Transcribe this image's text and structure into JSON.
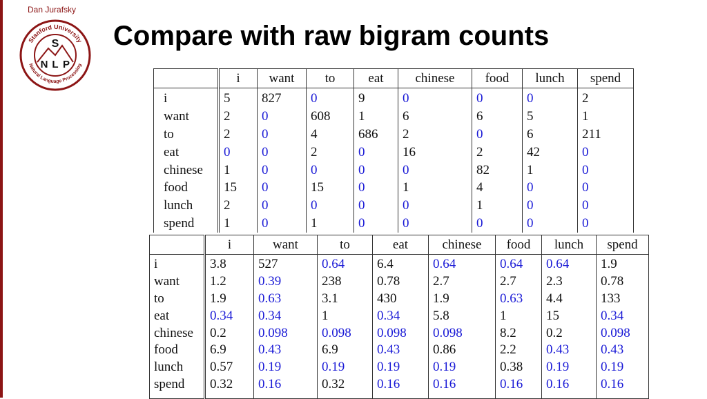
{
  "header": {
    "author": "Dan Jurafsky",
    "title": "Compare with raw bigram counts"
  },
  "logo": {
    "ring_text_top": "Stanford University",
    "ring_text_bottom": "Natural Language Processing",
    "letters": [
      "S",
      "N",
      "L",
      "P"
    ],
    "color": "#8c1515"
  },
  "colors": {
    "zero_value": "#1a1ad6",
    "accent": "#8c1515"
  },
  "counts_table": {
    "columns": [
      "i",
      "want",
      "to",
      "eat",
      "chinese",
      "food",
      "lunch",
      "spend"
    ],
    "rows": [
      {
        "label": "i",
        "values": [
          "5",
          "827",
          "0",
          "9",
          "0",
          "0",
          "0",
          "2"
        ]
      },
      {
        "label": "want",
        "values": [
          "2",
          "0",
          "608",
          "1",
          "6",
          "6",
          "5",
          "1"
        ]
      },
      {
        "label": "to",
        "values": [
          "2",
          "0",
          "4",
          "686",
          "2",
          "0",
          "6",
          "211"
        ]
      },
      {
        "label": "eat",
        "values": [
          "0",
          "0",
          "2",
          "0",
          "16",
          "2",
          "42",
          "0"
        ]
      },
      {
        "label": "chinese",
        "values": [
          "1",
          "0",
          "0",
          "0",
          "0",
          "82",
          "1",
          "0"
        ]
      },
      {
        "label": "food",
        "values": [
          "15",
          "0",
          "15",
          "0",
          "1",
          "4",
          "0",
          "0"
        ]
      },
      {
        "label": "lunch",
        "values": [
          "2",
          "0",
          "0",
          "0",
          "0",
          "1",
          "0",
          "0"
        ]
      },
      {
        "label": "spend",
        "values": [
          "1",
          "0",
          "1",
          "0",
          "0",
          "0",
          "0",
          "0"
        ]
      }
    ]
  },
  "reconstituted_table": {
    "columns": [
      "i",
      "want",
      "to",
      "eat",
      "chinese",
      "food",
      "lunch",
      "spend"
    ],
    "rows": [
      {
        "label": "i",
        "values": [
          "3.8",
          "527",
          "0.64",
          "6.4",
          "0.64",
          "0.64",
          "0.64",
          "1.9"
        ],
        "blue": [
          false,
          false,
          true,
          false,
          true,
          true,
          true,
          false
        ]
      },
      {
        "label": "want",
        "values": [
          "1.2",
          "0.39",
          "238",
          "0.78",
          "2.7",
          "2.7",
          "2.3",
          "0.78"
        ],
        "blue": [
          false,
          true,
          false,
          false,
          false,
          false,
          false,
          false
        ]
      },
      {
        "label": "to",
        "values": [
          "1.9",
          "0.63",
          "3.1",
          "430",
          "1.9",
          "0.63",
          "4.4",
          "133"
        ],
        "blue": [
          false,
          true,
          false,
          false,
          false,
          true,
          false,
          false
        ]
      },
      {
        "label": "eat",
        "values": [
          "0.34",
          "0.34",
          "1",
          "0.34",
          "5.8",
          "1",
          "15",
          "0.34"
        ],
        "blue": [
          true,
          true,
          false,
          true,
          false,
          false,
          false,
          true
        ]
      },
      {
        "label": "chinese",
        "values": [
          "0.2",
          "0.098",
          "0.098",
          "0.098",
          "0.098",
          "8.2",
          "0.2",
          "0.098"
        ],
        "blue": [
          false,
          true,
          true,
          true,
          true,
          false,
          false,
          true
        ]
      },
      {
        "label": "food",
        "values": [
          "6.9",
          "0.43",
          "6.9",
          "0.43",
          "0.86",
          "2.2",
          "0.43",
          "0.43"
        ],
        "blue": [
          false,
          true,
          false,
          true,
          false,
          false,
          true,
          true
        ]
      },
      {
        "label": "lunch",
        "values": [
          "0.57",
          "0.19",
          "0.19",
          "0.19",
          "0.19",
          "0.38",
          "0.19",
          "0.19"
        ],
        "blue": [
          false,
          true,
          true,
          true,
          true,
          false,
          true,
          true
        ]
      },
      {
        "label": "spend",
        "values": [
          "0.32",
          "0.16",
          "0.32",
          "0.16",
          "0.16",
          "0.16",
          "0.16",
          "0.16"
        ],
        "blue": [
          false,
          true,
          false,
          true,
          true,
          true,
          true,
          true
        ]
      }
    ]
  }
}
